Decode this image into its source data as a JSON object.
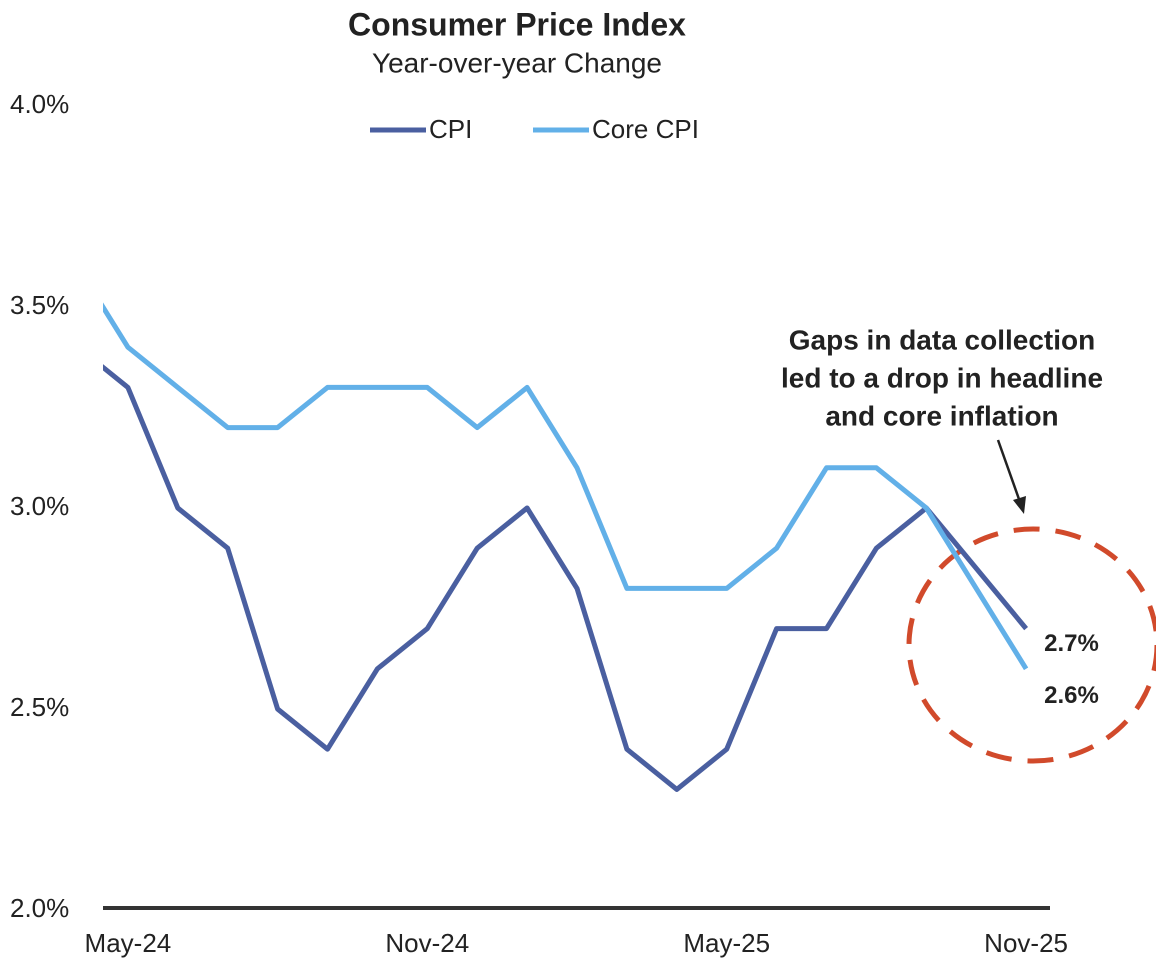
{
  "chart_data": {
    "type": "line",
    "title": "Consumer Price Index",
    "subtitle": "Year-over-year Change",
    "categories": [
      null,
      "May-24",
      null,
      null,
      null,
      null,
      null,
      "Nov-24",
      null,
      null,
      null,
      null,
      null,
      "May-25",
      null,
      null,
      null,
      null,
      null,
      "Nov-25"
    ],
    "series": [
      {
        "name": "CPI",
        "color": "#4a5fa0",
        "values": [
          3.4,
          3.3,
          3.0,
          2.9,
          2.5,
          2.4,
          2.6,
          2.7,
          2.9,
          3.0,
          2.8,
          2.4,
          2.3,
          2.4,
          2.7,
          2.7,
          2.9,
          3.0,
          null,
          2.7
        ],
        "value_labels": [
          null,
          null,
          null,
          null,
          null,
          null,
          null,
          null,
          null,
          null,
          null,
          null,
          null,
          null,
          null,
          null,
          null,
          null,
          null,
          "2.7%"
        ]
      },
      {
        "name": "Core CPI",
        "color": "#62b0e8",
        "values": [
          3.6,
          3.4,
          3.3,
          3.2,
          3.2,
          3.3,
          3.3,
          3.3,
          3.2,
          3.3,
          3.1,
          2.8,
          2.8,
          2.8,
          2.9,
          3.1,
          3.1,
          3.0,
          null,
          2.6
        ],
        "value_labels": [
          null,
          null,
          null,
          null,
          null,
          null,
          null,
          null,
          null,
          null,
          null,
          null,
          null,
          null,
          null,
          null,
          null,
          null,
          null,
          "2.6%"
        ]
      }
    ],
    "connect_gaps": true,
    "ylim": [
      2.0,
      4.0
    ],
    "yticks": [
      {
        "value": 2.0,
        "label": "2.0%"
      },
      {
        "value": 2.5,
        "label": "2.5%"
      },
      {
        "value": 3.0,
        "label": "3.0%"
      },
      {
        "value": 3.5,
        "label": "3.5%"
      },
      {
        "value": 4.0,
        "label": "4.0%"
      }
    ],
    "legend": "top",
    "annotation": [
      "Gaps in data collection",
      "led to a drop in headline",
      "and core inflation"
    ]
  }
}
